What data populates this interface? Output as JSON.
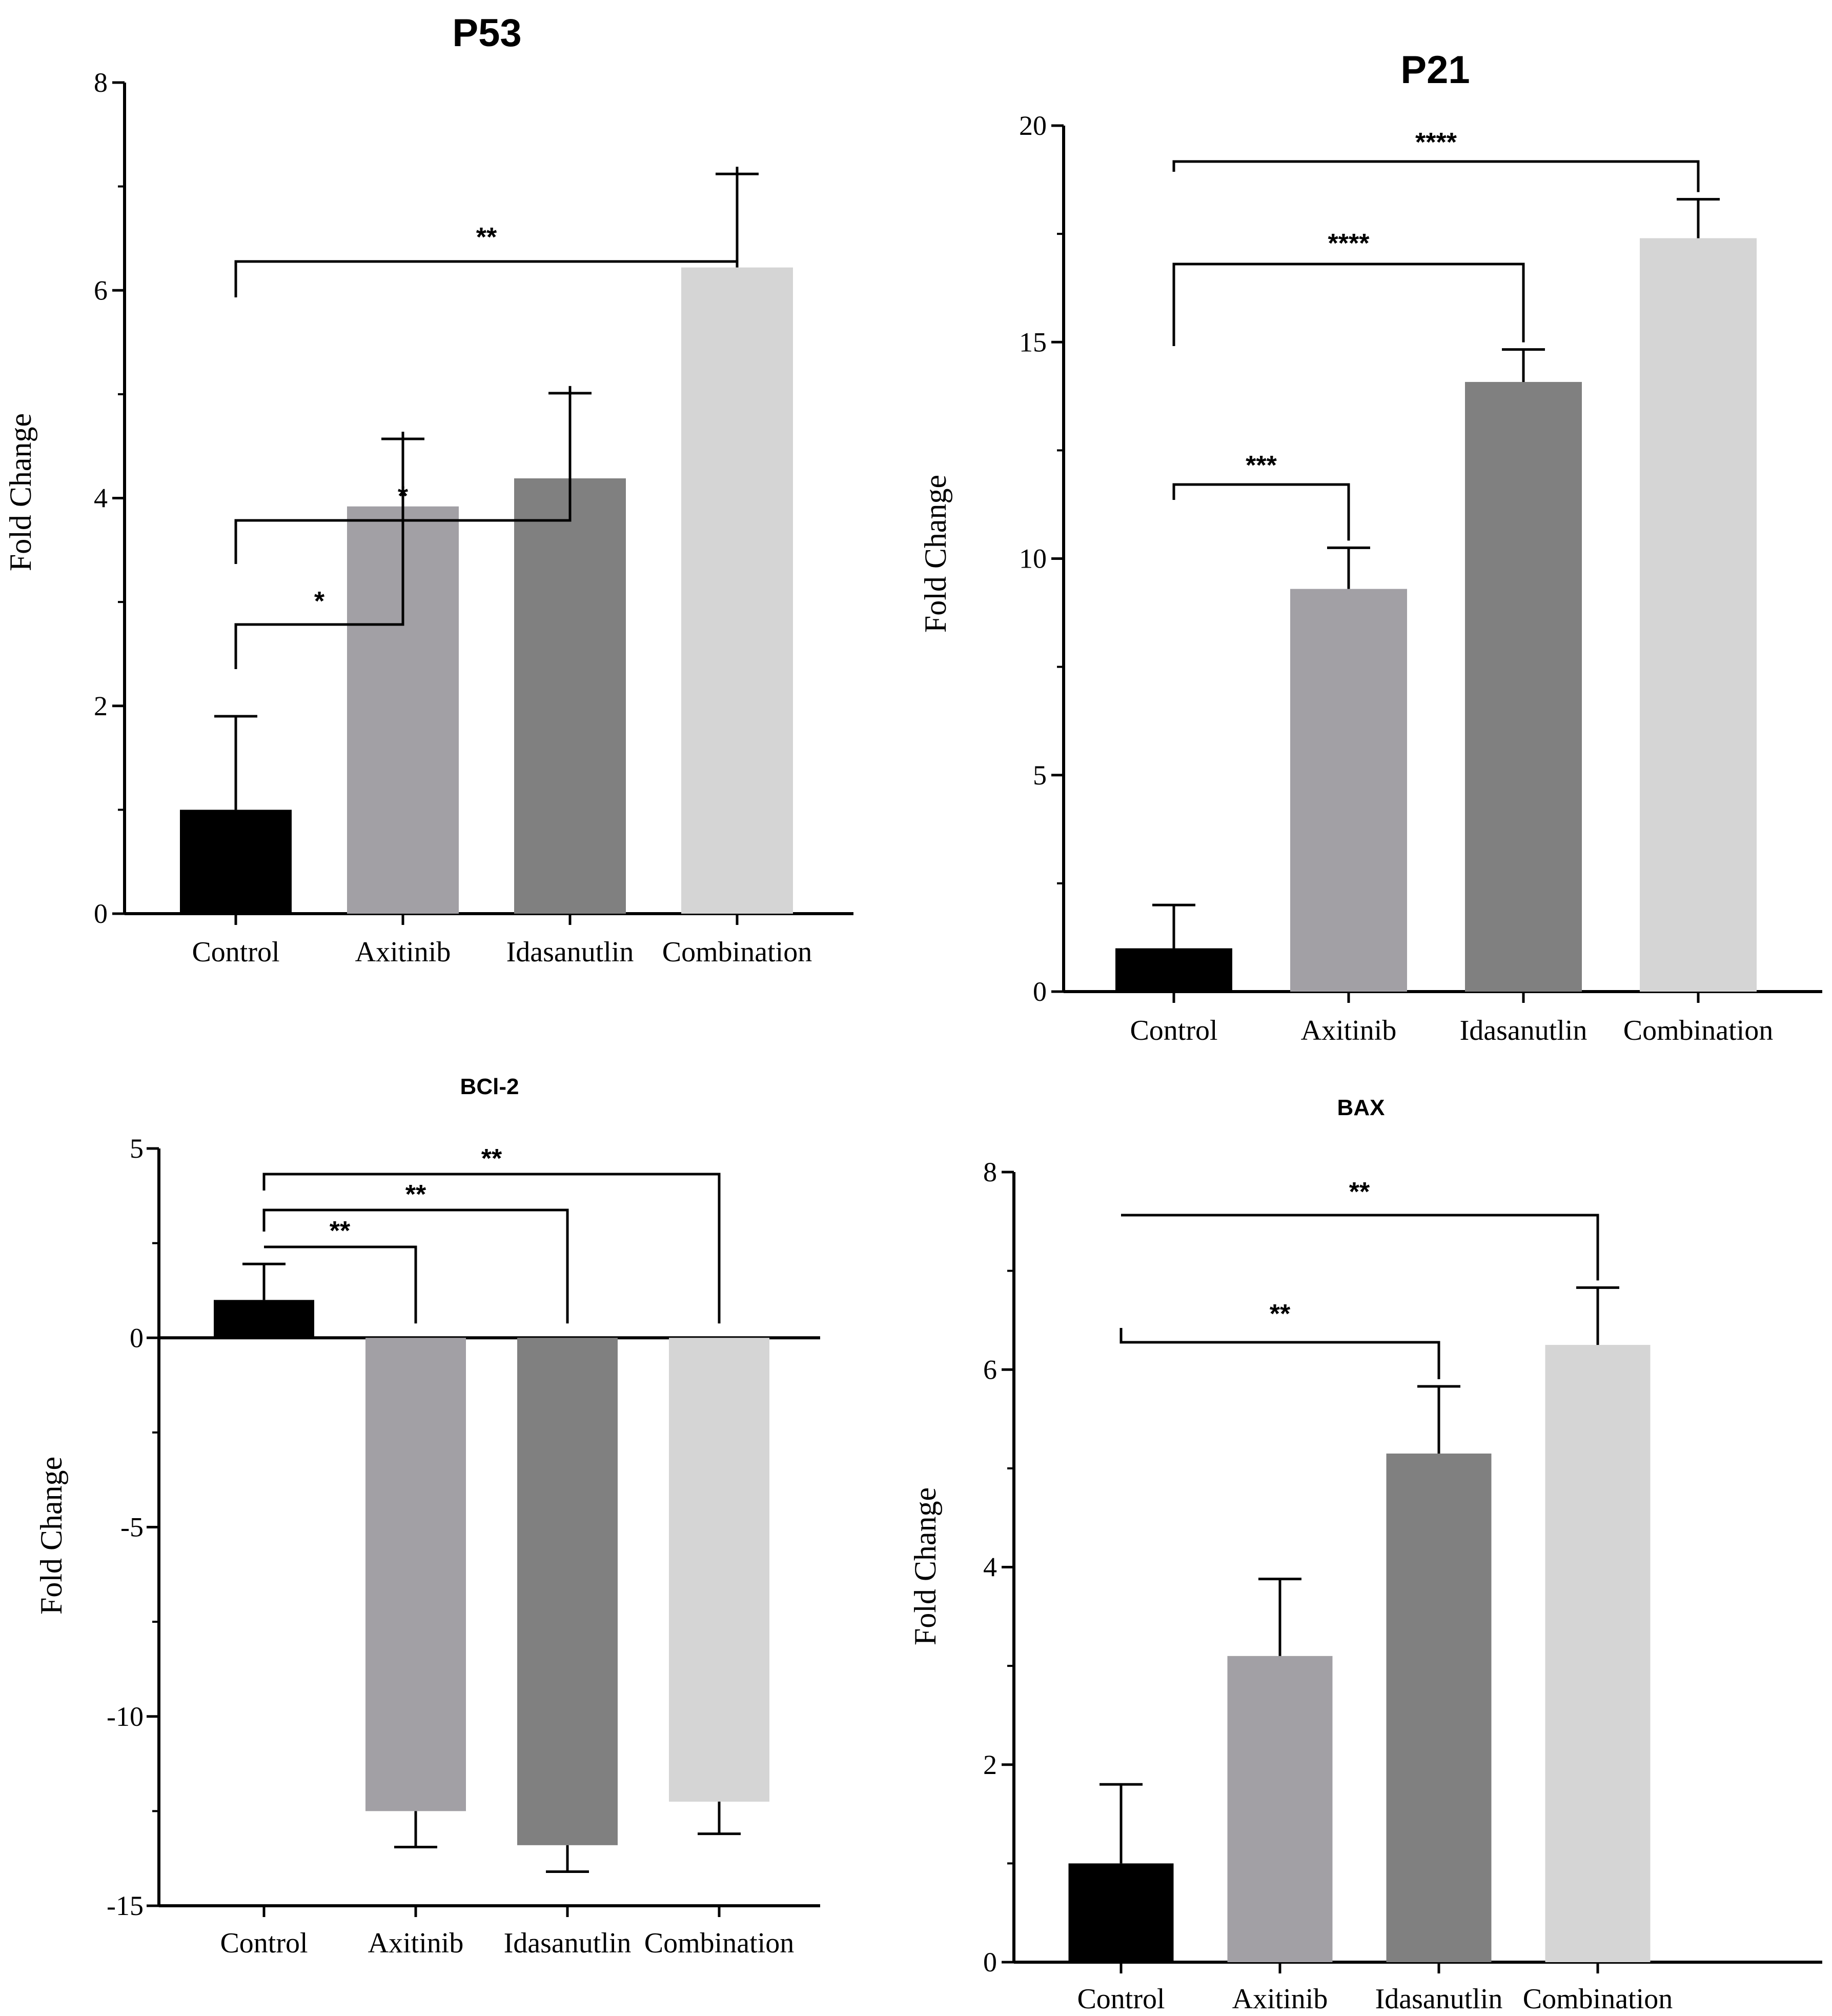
{
  "chart_data": [
    {
      "type": "bar",
      "title": "P53",
      "ylabel": "Fold Change",
      "xlabel": "",
      "categories": [
        "Control",
        "Axitinib",
        "Idasanutlin",
        "Combination"
      ],
      "values": [
        1.0,
        3.92,
        4.19,
        6.22
      ],
      "errors": [
        0.9,
        0.65,
        0.82,
        0.9
      ],
      "colors": [
        "#000000",
        "#a2a0a5",
        "#808080",
        "#d5d5d5"
      ],
      "ylim": [
        0,
        8
      ],
      "yticks": [
        0,
        2,
        4,
        6,
        8
      ],
      "significance": [
        {
          "from": 0,
          "to": 1,
          "label": "*"
        },
        {
          "from": 0,
          "to": 2,
          "label": "*"
        },
        {
          "from": 0,
          "to": 3,
          "label": "**"
        }
      ]
    },
    {
      "type": "bar",
      "title": "P21",
      "ylabel": "Fold Change",
      "xlabel": "",
      "categories": [
        "Control",
        "Axitinib",
        "Idasanutlin",
        "Combination"
      ],
      "values": [
        1.0,
        9.3,
        14.08,
        17.4
      ],
      "errors": [
        1.0,
        0.95,
        0.75,
        0.9
      ],
      "colors": [
        "#000000",
        "#a2a0a5",
        "#808080",
        "#d5d5d5"
      ],
      "ylim": [
        0,
        20
      ],
      "yticks": [
        0,
        5,
        10,
        15,
        20
      ],
      "significance": [
        {
          "from": 0,
          "to": 1,
          "label": "***"
        },
        {
          "from": 0,
          "to": 2,
          "label": "****"
        },
        {
          "from": 0,
          "to": 3,
          "label": "****"
        }
      ]
    },
    {
      "type": "bar",
      "title": "BCl-2",
      "ylabel": "Fold Change",
      "xlabel": "",
      "categories": [
        "Control",
        "Axitinib",
        "Idasanutlin",
        "Combination"
      ],
      "values": [
        1.0,
        -12.5,
        -13.4,
        -12.25
      ],
      "errors": [
        0.95,
        0.95,
        0.7,
        0.85
      ],
      "colors": [
        "#000000",
        "#a2a0a5",
        "#808080",
        "#d5d5d5"
      ],
      "ylim": [
        -15,
        5
      ],
      "yticks": [
        -15,
        -10,
        -5,
        0,
        5
      ],
      "significance": [
        {
          "from": 0,
          "to": 1,
          "label": "**"
        },
        {
          "from": 0,
          "to": 2,
          "label": "**"
        },
        {
          "from": 0,
          "to": 3,
          "label": "**"
        }
      ]
    },
    {
      "type": "bar",
      "title": "BAX",
      "ylabel": "Fold Change",
      "xlabel": "",
      "categories": [
        "Control",
        "Axitinib",
        "Idasanutlin",
        "Combination"
      ],
      "values": [
        1.0,
        3.1,
        5.15,
        6.25
      ],
      "errors": [
        0.8,
        0.78,
        0.68,
        0.58
      ],
      "colors": [
        "#000000",
        "#a2a0a5",
        "#808080",
        "#d5d5d5"
      ],
      "ylim": [
        0,
        8
      ],
      "yticks": [
        0,
        2,
        4,
        6,
        8
      ],
      "significance": [
        {
          "from": 0,
          "to": 2,
          "label": "**"
        },
        {
          "from": 0,
          "to": 3,
          "label": "**"
        }
      ]
    }
  ]
}
